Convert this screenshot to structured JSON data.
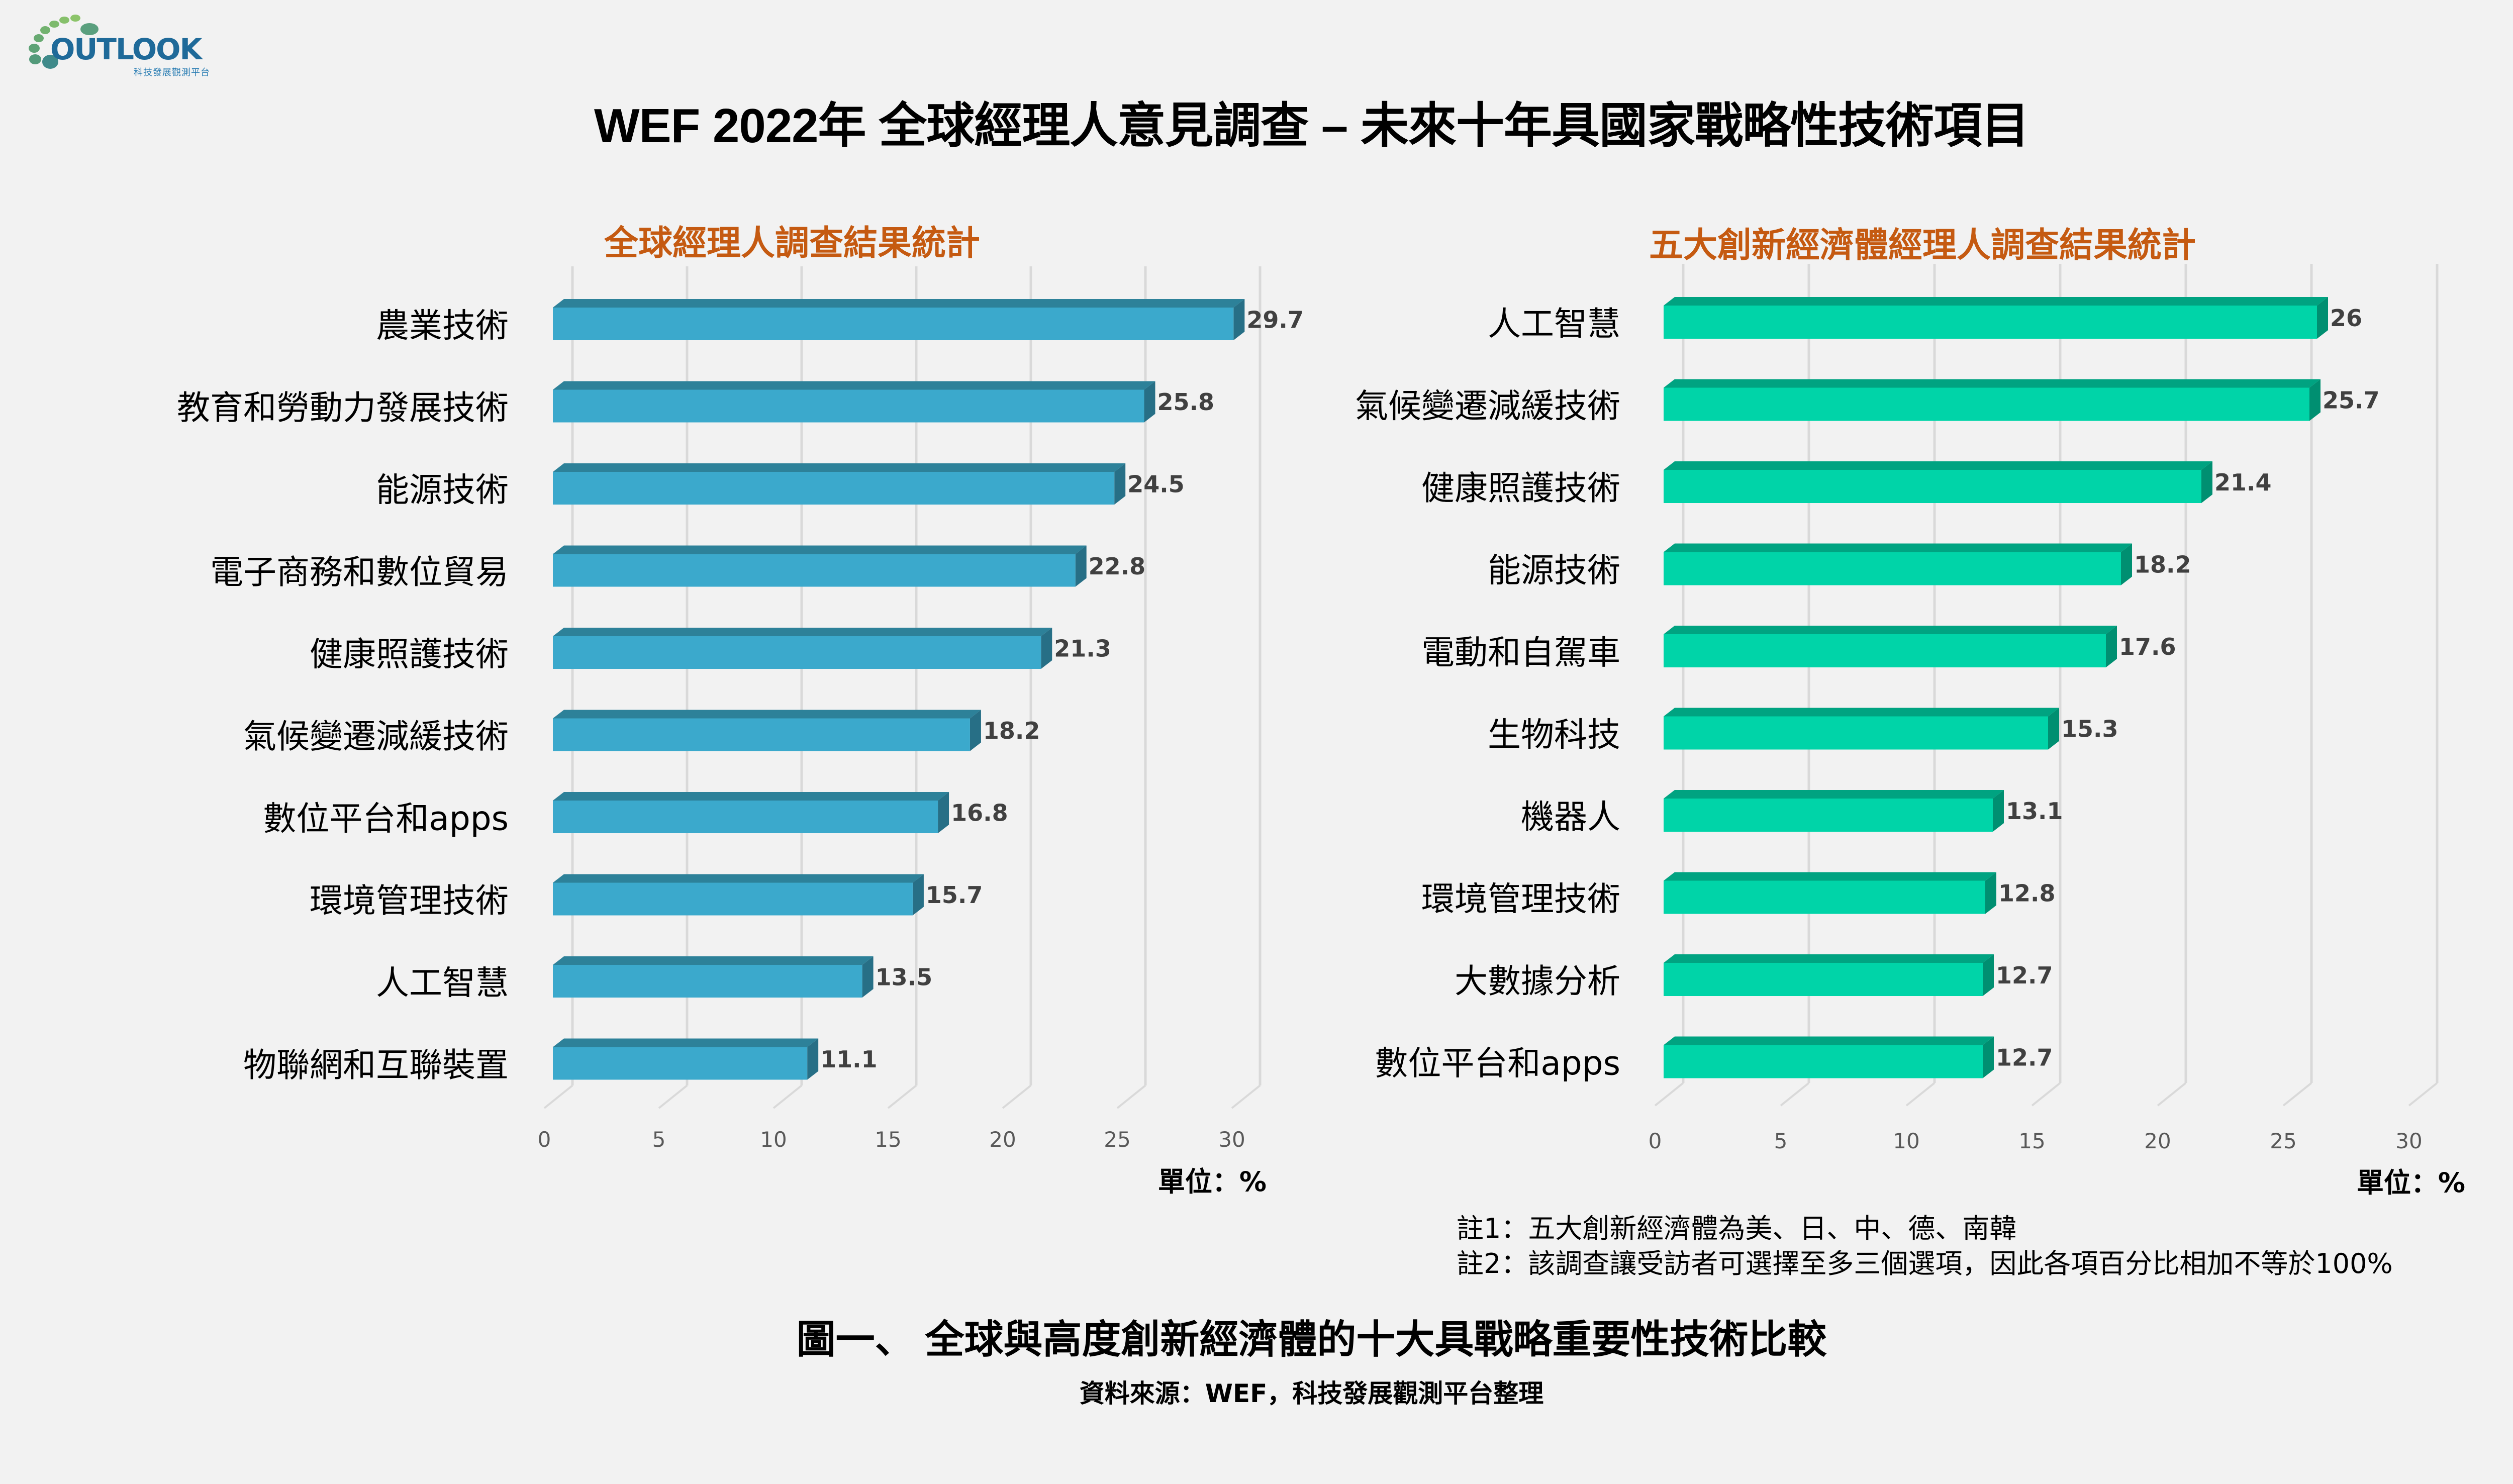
{
  "logo": {
    "text": "OUTLOOK",
    "subtext": "科技發展觀測平台"
  },
  "title": "WEF 2022年 全球經理人意見調查 – 未來十年具國家戰略性技術項目",
  "colors": {
    "background": "#f2f2f2",
    "left_bar_front": "#3ba9cc",
    "left_bar_top": "#2d8199",
    "left_bar_side": "#276f86",
    "right_bar_front": "#00d4a8",
    "right_bar_top": "#00a381",
    "right_bar_side": "#008f71",
    "subtitle": "#c55a11",
    "grid": "#d9d9d9"
  },
  "chart_data": [
    {
      "type": "bar",
      "orientation": "horizontal",
      "style": "3d",
      "title": "全球經理人調查結果統計",
      "categories": [
        "農業技術",
        "教育和勞動力發展技術",
        "能源技術",
        "電子商務和數位貿易",
        "健康照護技術",
        "氣候變遷減緩技術",
        "數位平台和apps",
        "環境管理技術",
        "人工智慧",
        "物聯網和互聯裝置"
      ],
      "values": [
        29.7,
        25.8,
        24.5,
        22.8,
        21.3,
        18.2,
        16.8,
        15.7,
        13.5,
        11.1
      ],
      "value_labels": [
        "29.7",
        "25.8",
        "24.5",
        "22.8",
        "21.3",
        "18.2",
        "16.8",
        "15.7",
        "13.5",
        "11.1"
      ],
      "xlim": [
        0,
        30
      ],
      "xticks": [
        0,
        5,
        10,
        15,
        20,
        25,
        30
      ],
      "xtick_labels": [
        "0",
        "5",
        "10",
        "15",
        "20",
        "25",
        "30"
      ],
      "unit_label": "單位：%",
      "grid": true
    },
    {
      "type": "bar",
      "orientation": "horizontal",
      "style": "3d",
      "title": "五大創新經濟體經理人調查結果統計",
      "categories": [
        "人工智慧",
        "氣候變遷減緩技術",
        "健康照護技術",
        "能源技術",
        "電動和自駕車",
        "生物科技",
        "機器人",
        "環境管理技術",
        "大數據分析",
        "數位平台和apps"
      ],
      "values": [
        26,
        25.7,
        21.4,
        18.2,
        17.6,
        15.3,
        13.1,
        12.8,
        12.7,
        12.7
      ],
      "value_labels": [
        "26",
        "25.7",
        "21.4",
        "18.2",
        "17.6",
        "15.3",
        "13.1",
        "12.8",
        "12.7",
        "12.7"
      ],
      "xlim": [
        0,
        30
      ],
      "xticks": [
        0,
        5,
        10,
        15,
        20,
        25,
        30
      ],
      "xtick_labels": [
        "0",
        "5",
        "10",
        "15",
        "20",
        "25",
        "30"
      ],
      "unit_label": "單位：%",
      "grid": true
    }
  ],
  "notes": [
    "註1：五大創新經濟體為美、日、中、德、南韓",
    "註2：該調查讓受訪者可選擇至多三個選項，因此各項百分比相加不等於100%"
  ],
  "caption": "圖一、 全球與高度創新經濟體的十大具戰略重要性技術比較",
  "source": "資料來源：WEF，科技發展觀測平台整理"
}
